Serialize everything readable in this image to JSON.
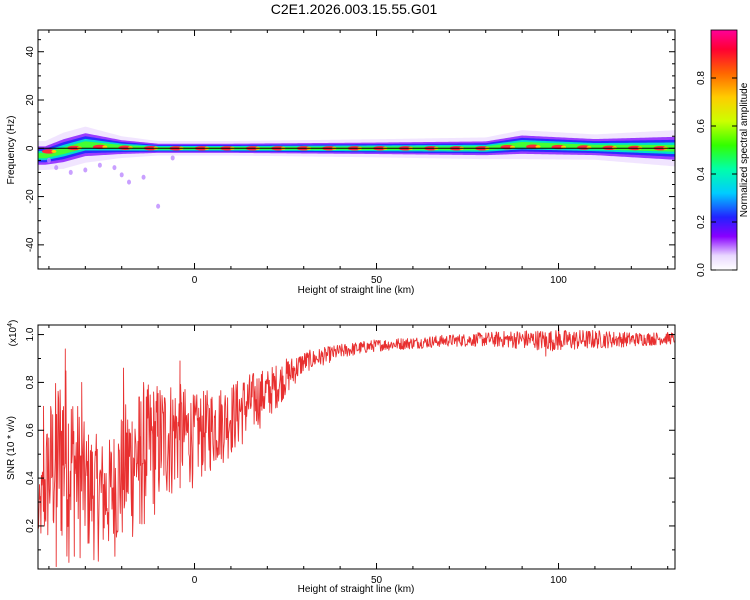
{
  "chart_data": [
    {
      "type": "heatmap",
      "title": "C2E1.2026.003.15.55.G01",
      "xlabel": "Height of straight line (km)",
      "ylabel": "Frequency (Hz)",
      "xlim": [
        -43,
        132
      ],
      "ylim": [
        -50,
        49
      ],
      "xticks": [
        0,
        50,
        100
      ],
      "yticks": [
        -40,
        -20,
        0,
        20,
        40
      ],
      "colorbar": {
        "label": "Normalized spectral amplitude",
        "range": [
          0,
          1
        ],
        "ticks": [
          "0.0",
          "0.2",
          "0.4",
          "0.6",
          "0.8"
        ]
      },
      "ridge": {
        "center_frequency_hz": 0,
        "points": [
          {
            "x": -41,
            "freq": -3,
            "halfwidth_hz": 4
          },
          {
            "x": -36,
            "freq": -1,
            "halfwidth_hz": 5
          },
          {
            "x": -30,
            "freq": 1.5,
            "halfwidth_hz": 5
          },
          {
            "x": -20,
            "freq": 0.5,
            "halfwidth_hz": 3
          },
          {
            "x": -10,
            "freq": 0,
            "halfwidth_hz": 2
          },
          {
            "x": 10,
            "freq": 0,
            "halfwidth_hz": 2
          },
          {
            "x": 50,
            "freq": 0,
            "halfwidth_hz": 2.5
          },
          {
            "x": 80,
            "freq": 0,
            "halfwidth_hz": 3
          },
          {
            "x": 90,
            "freq": 1.5,
            "halfwidth_hz": 4
          },
          {
            "x": 110,
            "freq": 0.5,
            "halfwidth_hz": 3.5
          },
          {
            "x": 132,
            "freq": 0,
            "halfwidth_hz": 5
          }
        ]
      }
    },
    {
      "type": "line",
      "xlabel": "Height of straight line (km)",
      "ylabel": "SNR (10 * v/v)",
      "multiplier": "(x10",
      "multiplier_exp": "4",
      "multiplier_close": ")",
      "xlim": [
        -43,
        132
      ],
      "ylim": [
        0.02,
        1.04
      ],
      "xticks": [
        0,
        50,
        100
      ],
      "yticks": [
        "0.2",
        "0.4",
        "0.6",
        "0.8",
        "1.0"
      ],
      "series": [
        {
          "name": "SNR",
          "color": "#e83030",
          "envelope": [
            {
              "x": -43,
              "low": 0.1,
              "high": 0.32
            },
            {
              "x": -40,
              "low": 0.05,
              "high": 0.72
            },
            {
              "x": -36,
              "low": 0.03,
              "high": 0.92
            },
            {
              "x": -30,
              "low": 0.05,
              "high": 0.62
            },
            {
              "x": -24,
              "low": 0.04,
              "high": 0.55
            },
            {
              "x": -18,
              "low": 0.1,
              "high": 0.75
            },
            {
              "x": -12,
              "low": 0.2,
              "high": 0.8
            },
            {
              "x": -6,
              "low": 0.3,
              "high": 0.82
            },
            {
              "x": 0,
              "low": 0.36,
              "high": 0.75
            },
            {
              "x": 5,
              "low": 0.42,
              "high": 0.78
            },
            {
              "x": 10,
              "low": 0.48,
              "high": 0.8
            },
            {
              "x": 15,
              "low": 0.55,
              "high": 0.84
            },
            {
              "x": 20,
              "low": 0.64,
              "high": 0.86
            },
            {
              "x": 25,
              "low": 0.74,
              "high": 0.9
            },
            {
              "x": 30,
              "low": 0.84,
              "high": 0.93
            },
            {
              "x": 40,
              "low": 0.9,
              "high": 0.96
            },
            {
              "x": 50,
              "low": 0.93,
              "high": 0.98
            },
            {
              "x": 60,
              "low": 0.94,
              "high": 0.99
            },
            {
              "x": 70,
              "low": 0.95,
              "high": 1.0
            },
            {
              "x": 80,
              "low": 0.95,
              "high": 1.01
            },
            {
              "x": 90,
              "low": 0.94,
              "high": 1.02
            },
            {
              "x": 100,
              "low": 0.93,
              "high": 1.02
            },
            {
              "x": 110,
              "low": 0.94,
              "high": 1.02
            },
            {
              "x": 120,
              "low": 0.95,
              "high": 1.01
            },
            {
              "x": 132,
              "low": 0.96,
              "high": 1.01
            }
          ],
          "spikes": [
            {
              "x": -41.5,
              "y": 0.7
            },
            {
              "x": -38,
              "y": 0.03
            },
            {
              "x": -35.5,
              "y": 0.94
            },
            {
              "x": -33,
              "y": 0.3
            },
            {
              "x": -31,
              "y": 0.8
            },
            {
              "x": -19.5,
              "y": 0.86
            },
            {
              "x": -15,
              "y": 0.21
            },
            {
              "x": -14,
              "y": 0.8
            },
            {
              "x": -4,
              "y": 0.89
            },
            {
              "x": 96.5,
              "y": 0.91
            },
            {
              "x": 100,
              "y": 1.04
            }
          ]
        }
      ]
    }
  ]
}
